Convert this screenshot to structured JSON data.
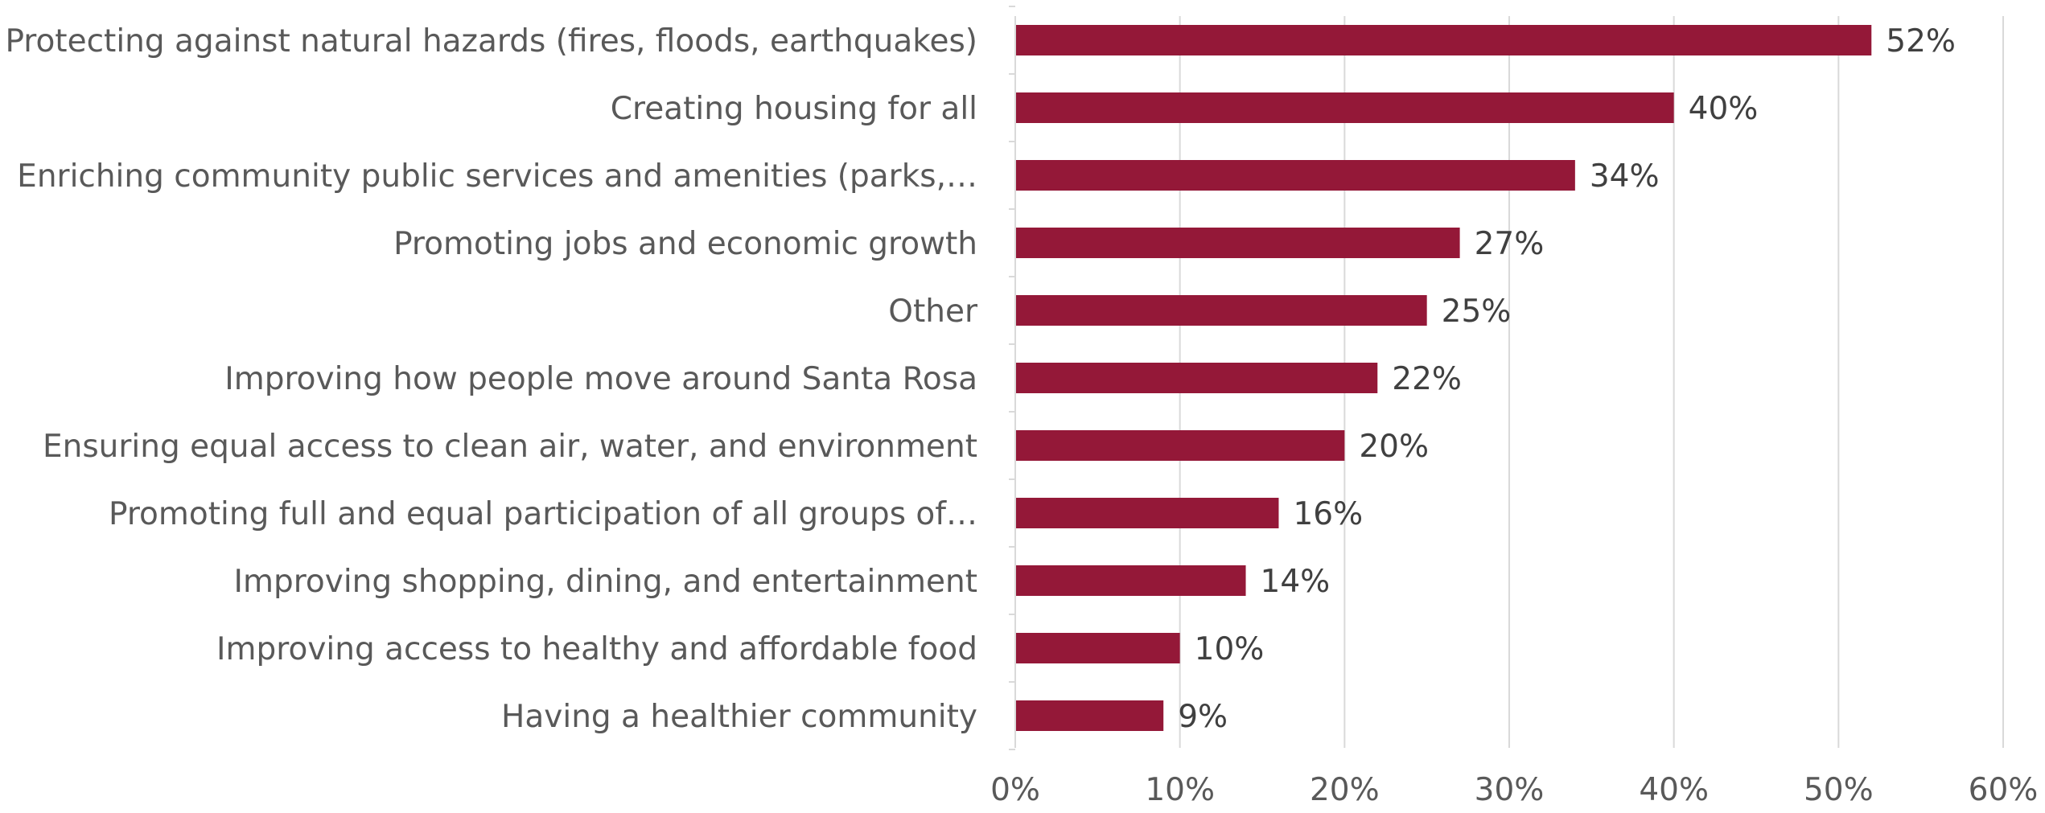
{
  "chart_data": {
    "type": "bar",
    "orientation": "horizontal",
    "title": "",
    "xlabel": "",
    "ylabel": "",
    "categories": [
      "Protecting against natural hazards (fires, floods, earthquakes)",
      "Creating housing for all",
      "Enriching community public services and amenities (parks,…",
      "Promoting jobs and economic growth",
      "Other",
      "Improving how people move around Santa Rosa",
      "Ensuring equal access to clean air, water, and environment",
      "Promoting full and equal participation of all groups of…",
      "Improving shopping, dining, and entertainment",
      "Improving access to healthy and affordable food",
      "Having a healthier community"
    ],
    "values": [
      52,
      40,
      34,
      27,
      25,
      22,
      20,
      16,
      14,
      10,
      9
    ],
    "value_labels": [
      "52%",
      "40%",
      "34%",
      "27%",
      "25%",
      "22%",
      "20%",
      "16%",
      "14%",
      "10%",
      "9%"
    ],
    "xlim": [
      0,
      60
    ],
    "x_ticks": [
      0,
      10,
      20,
      30,
      40,
      50,
      60
    ],
    "x_tick_labels": [
      "0%",
      "10%",
      "20%",
      "30%",
      "40%",
      "50%",
      "60%"
    ],
    "grid": true,
    "legend": "none",
    "bar_color": "#941838",
    "gridline_color": "#d9d9d9"
  }
}
